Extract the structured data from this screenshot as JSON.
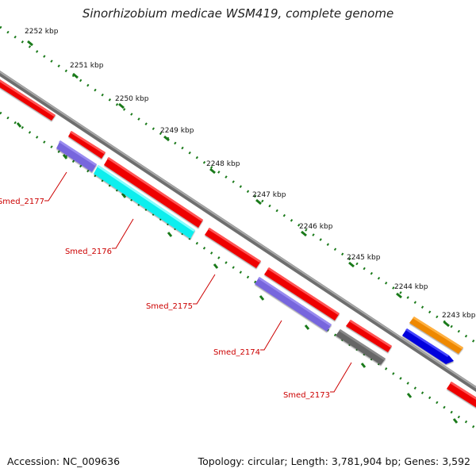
{
  "title": "Sinorhizobium medicae WSM419, complete genome",
  "footer": {
    "accession": "Accession: NC_009636",
    "summary": "Topology: circular; Length: 3,781,904 bp; Genes: 3,592"
  },
  "kbp_ticks": [
    "2252 kbp",
    "2251 kbp",
    "2250 kbp",
    "2249 kbp",
    "2248 kbp",
    "2247 kbp",
    "2246 kbp",
    "2245 kbp",
    "2244 kbp",
    "2243 kbp"
  ],
  "gene_labels": [
    "Smed_2177",
    "Smed_2176",
    "Smed_2175",
    "Smed_2174",
    "Smed_2173"
  ],
  "colors": {
    "backbone": "#8c8c8c",
    "tick_green": "#1a7a1a",
    "label_red": "#cc0000",
    "cds_red": "#ee0000",
    "cds_violet": "#7766dd",
    "cds_cyan": "#11eeee",
    "cds_grey": "#666666",
    "cds_orange": "#ee8800",
    "cds_blue": "#0000dd"
  }
}
